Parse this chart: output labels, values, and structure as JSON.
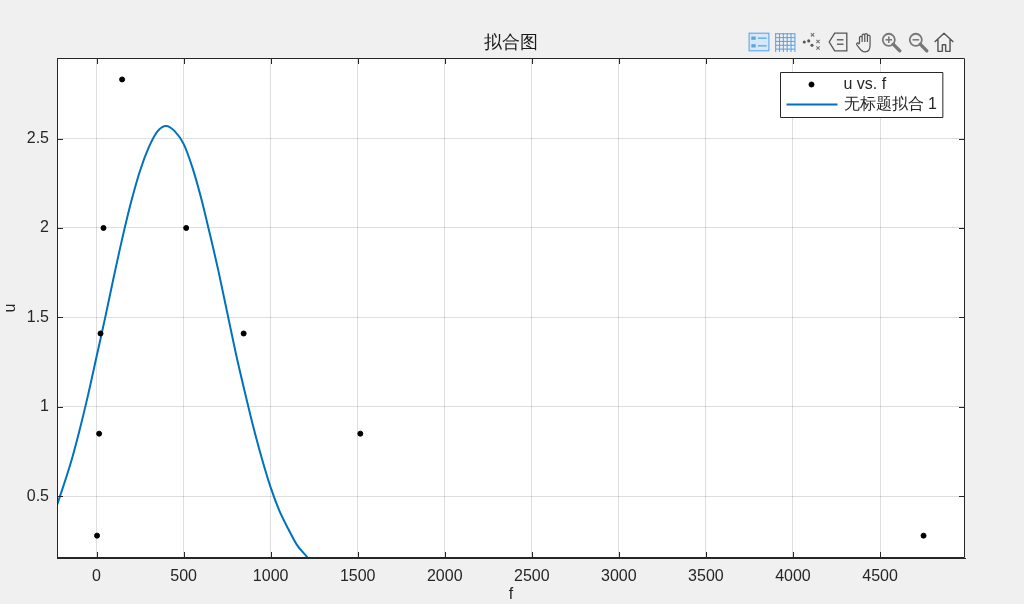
{
  "chart_data": {
    "type": "scatter",
    "title": "拟合图",
    "xlabel": "f",
    "ylabel": "u",
    "xlim": [
      -227,
      4988
    ],
    "xticks": [
      0,
      500,
      1000,
      1500,
      2000,
      2500,
      3000,
      3500,
      4000,
      4500
    ],
    "ylim": [
      0.155,
      2.95
    ],
    "yticks": [
      0.5,
      1,
      1.5,
      2,
      2.5
    ],
    "grid": true,
    "legend": "top right",
    "series": [
      {
        "name": "u vs. f",
        "type": "scatter",
        "color": "#000000",
        "marker": "circle",
        "x": [
          3,
          15,
          23,
          40,
          147,
          515,
          845,
          1515,
          4750
        ],
        "values": [
          0.28,
          0.85,
          1.41,
          2,
          2.83,
          2,
          1.41,
          0.85,
          0.28
        ]
      },
      {
        "name": "无标题拟合 1",
        "type": "line",
        "color": "#0072bd",
        "marker": "none",
        "line_style": "solid",
        "x": [
          -227,
          -150,
          -100,
          -50,
          0,
          50,
          100,
          150,
          200,
          250,
          300,
          350,
          400,
          450,
          500,
          550,
          600,
          650,
          700,
          750,
          800,
          850,
          900,
          950,
          1000,
          1050,
          1100,
          1150,
          1210
        ],
        "values": [
          0.45,
          0.68,
          0.86,
          1.06,
          1.28,
          1.5,
          1.73,
          1.95,
          2.15,
          2.32,
          2.45,
          2.54,
          2.57,
          2.54,
          2.47,
          2.34,
          2.17,
          1.97,
          1.76,
          1.53,
          1.3,
          1.09,
          0.89,
          0.71,
          0.55,
          0.42,
          0.32,
          0.23,
          0.16
        ]
      }
    ]
  }
}
